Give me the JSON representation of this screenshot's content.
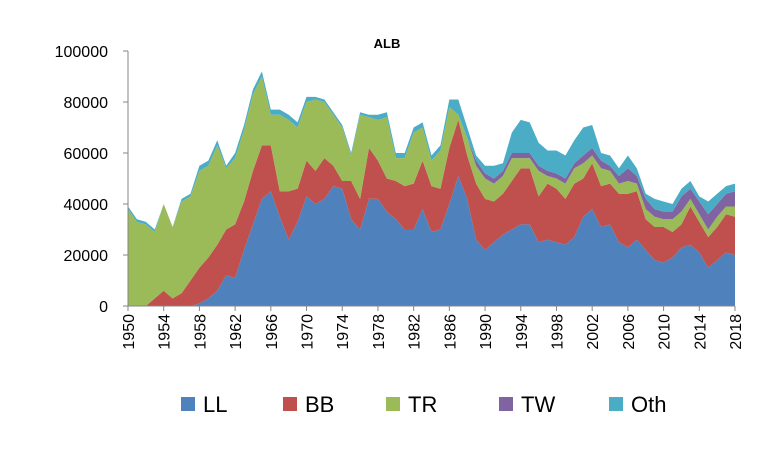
{
  "chart_data": {
    "type": "area",
    "stacked": true,
    "title": "ALB",
    "xlabel": "",
    "ylabel": "",
    "ylim": [
      0,
      100000
    ],
    "yticks": [
      "0",
      "20000",
      "40000",
      "60000",
      "80000",
      "100000"
    ],
    "xticks": [
      "1950",
      "1954",
      "1958",
      "1962",
      "1966",
      "1970",
      "1974",
      "1978",
      "1982",
      "1986",
      "1990",
      "1994",
      "1998",
      "2002",
      "2006",
      "2010",
      "2014",
      "2018"
    ],
    "grid": false,
    "legend_position": "bottom",
    "x": [
      1950,
      1951,
      1952,
      1953,
      1954,
      1955,
      1956,
      1957,
      1958,
      1959,
      1960,
      1961,
      1962,
      1963,
      1964,
      1965,
      1966,
      1967,
      1968,
      1969,
      1970,
      1971,
      1972,
      1973,
      1974,
      1975,
      1976,
      1977,
      1978,
      1979,
      1980,
      1981,
      1982,
      1983,
      1984,
      1985,
      1986,
      1987,
      1988,
      1989,
      1990,
      1991,
      1992,
      1993,
      1994,
      1995,
      1996,
      1997,
      1998,
      1999,
      2000,
      2001,
      2002,
      2003,
      2004,
      2005,
      2006,
      2007,
      2008,
      2009,
      2010,
      2011,
      2012,
      2013,
      2014,
      2015,
      2016,
      2017,
      2018
    ],
    "series": [
      {
        "name": "LL",
        "color": "#4f81bd",
        "values": [
          0,
          0,
          0,
          0,
          0,
          0,
          0,
          0,
          1000,
          3000,
          6000,
          12000,
          11000,
          22000,
          32000,
          42000,
          45000,
          35000,
          26000,
          33000,
          43000,
          40000,
          42000,
          47000,
          46000,
          34000,
          30000,
          42000,
          42000,
          37000,
          34000,
          30000,
          30000,
          38000,
          29000,
          30000,
          40000,
          51000,
          42000,
          26000,
          22000,
          25000,
          28000,
          30000,
          32000,
          32000,
          25000,
          26000,
          25000,
          24000,
          27000,
          35000,
          38000,
          31000,
          32000,
          25000,
          23000,
          26000,
          22000,
          18000,
          17000,
          19000,
          23000,
          24000,
          21000,
          15000,
          18000,
          21000,
          20000
        ]
      },
      {
        "name": "BB",
        "color": "#c0504d",
        "values": [
          0,
          0,
          0,
          3000,
          6000,
          3000,
          5000,
          10000,
          14000,
          16000,
          18000,
          18000,
          21000,
          19000,
          21000,
          21000,
          18000,
          10000,
          19000,
          13000,
          14000,
          13000,
          16000,
          8000,
          3000,
          15000,
          12000,
          20000,
          15000,
          13000,
          15000,
          17000,
          18000,
          19000,
          18000,
          16000,
          22000,
          22000,
          17000,
          22000,
          20000,
          16000,
          16000,
          19000,
          22000,
          22000,
          18000,
          22000,
          21000,
          18000,
          21000,
          15000,
          18000,
          16000,
          16000,
          19000,
          21000,
          19000,
          12000,
          13000,
          14000,
          10000,
          9000,
          15000,
          12000,
          12000,
          13000,
          15000,
          15000
        ]
      },
      {
        "name": "TR",
        "color": "#9bbb59",
        "values": [
          38000,
          33000,
          32000,
          26000,
          34000,
          28000,
          36000,
          33000,
          38000,
          36000,
          39000,
          24000,
          26000,
          28000,
          30000,
          27000,
          12000,
          30000,
          28000,
          24000,
          23000,
          28000,
          22000,
          20000,
          21000,
          10000,
          33000,
          12000,
          16000,
          24000,
          9000,
          11000,
          20000,
          13000,
          10000,
          15000,
          16000,
          2000,
          7000,
          7000,
          8000,
          7000,
          7000,
          9000,
          4000,
          4000,
          10000,
          3000,
          4000,
          6000,
          6000,
          6000,
          3000,
          7000,
          5000,
          4000,
          5000,
          3000,
          4000,
          4000,
          3000,
          5000,
          5000,
          3000,
          3000,
          3000,
          4000,
          3000,
          4000
        ]
      },
      {
        "name": "TW",
        "color": "#8064a2",
        "values": [
          0,
          0,
          0,
          0,
          0,
          0,
          0,
          0,
          0,
          0,
          0,
          0,
          0,
          0,
          0,
          0,
          0,
          0,
          0,
          0,
          0,
          0,
          0,
          0,
          0,
          0,
          0,
          0,
          0,
          0,
          0,
          0,
          0,
          0,
          0,
          0,
          0,
          0,
          0,
          2000,
          2000,
          2000,
          2000,
          2000,
          2000,
          2000,
          2000,
          2000,
          2000,
          2000,
          2000,
          3000,
          3000,
          3000,
          2000,
          3000,
          5000,
          3000,
          4000,
          3000,
          3000,
          3000,
          6000,
          4000,
          5000,
          6000,
          5000,
          5000,
          6000
        ]
      },
      {
        "name": "Oth",
        "color": "#4bacc6",
        "values": [
          1000,
          1000,
          1000,
          1000,
          0,
          0,
          1000,
          1000,
          2000,
          2000,
          2000,
          1000,
          2000,
          2000,
          2000,
          2000,
          2000,
          2000,
          2000,
          2000,
          2000,
          1000,
          1000,
          1000,
          1000,
          1000,
          1000,
          1000,
          2000,
          2000,
          2000,
          2000,
          2000,
          2000,
          2000,
          2000,
          3000,
          6000,
          4000,
          2000,
          3000,
          5000,
          3000,
          8000,
          13000,
          12000,
          9000,
          8000,
          9000,
          9000,
          9000,
          11000,
          9000,
          3000,
          4000,
          3000,
          5000,
          3000,
          2000,
          4000,
          4000,
          3000,
          3000,
          3000,
          2000,
          5000,
          4000,
          3000,
          3000
        ]
      }
    ]
  }
}
